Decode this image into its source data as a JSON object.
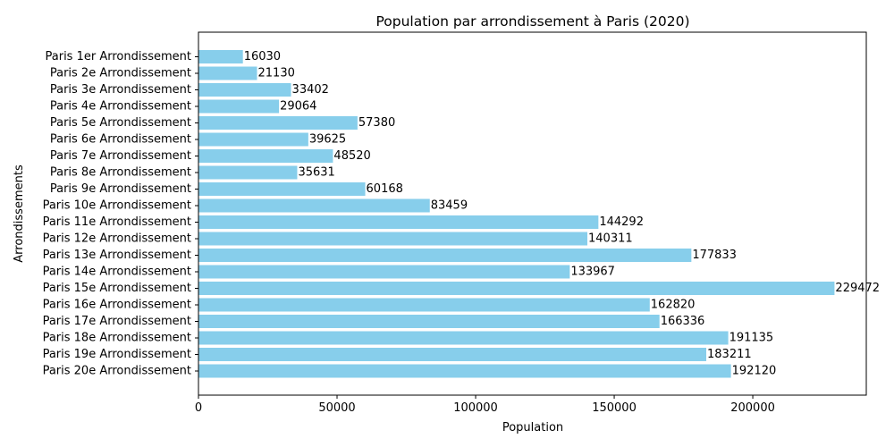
{
  "chart_data": {
    "type": "bar",
    "orientation": "horizontal",
    "title": "Population par arrondissement à Paris (2020)",
    "xlabel": "Population",
    "ylabel": "Arrondissements",
    "categories": [
      "Paris 1er Arrondissement",
      "Paris 2e Arrondissement",
      "Paris 3e Arrondissement",
      "Paris 4e Arrondissement",
      "Paris 5e Arrondissement",
      "Paris 6e Arrondissement",
      "Paris 7e Arrondissement",
      "Paris 8e Arrondissement",
      "Paris 9e Arrondissement",
      "Paris 10e Arrondissement",
      "Paris 11e Arrondissement",
      "Paris 12e Arrondissement",
      "Paris 13e Arrondissement",
      "Paris 14e Arrondissement",
      "Paris 15e Arrondissement",
      "Paris 16e Arrondissement",
      "Paris 17e Arrondissement",
      "Paris 18e Arrondissement",
      "Paris 19e Arrondissement",
      "Paris 20e Arrondissement"
    ],
    "values": [
      16030,
      21130,
      33402,
      29064,
      57380,
      39625,
      48520,
      35631,
      60168,
      83459,
      144292,
      140311,
      177833,
      133967,
      229472,
      162820,
      166336,
      191135,
      183211,
      192120
    ],
    "xlim": [
      0,
      240945
    ],
    "xticks": [
      0,
      50000,
      100000,
      150000,
      200000
    ],
    "xtick_labels": [
      "0",
      "50000",
      "100000",
      "150000",
      "200000"
    ],
    "bar_color": "#87ceeb",
    "grid": false,
    "legend": "none"
  }
}
